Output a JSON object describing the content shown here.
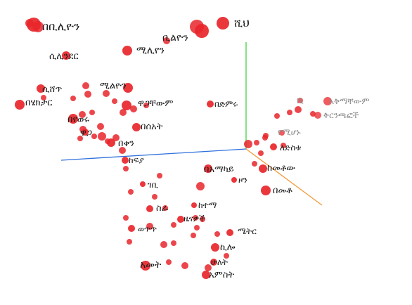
{
  "colors": {
    "point": "#e8262b",
    "label_dark": "#1c1c1c",
    "label_faded": "#8c8c8c",
    "axis_x": "#2e6fdc",
    "axis_y": "#3fd23f",
    "axis_z": "#f29a3a"
  },
  "labels": [
    "በቢሊዮን",
    "ሺህ",
    "ቢልዮን",
    "ሚሊየን",
    "ሲሊንደር",
    "ሚልዮን",
    "ሲሸጥ",
    "በሄክታር",
    "ዋጋቸውም",
    "በድምሩ",
    "በየወሩ",
    "ዋጋ",
    "በሰአት",
    "በቀን",
    "ሺ",
    "አቅማቸውም",
    "ቅርንጫፎች",
    "የሚሆኑ",
    "ለድስቱ",
    "ከፍያ",
    "በአማካይ",
    "ከመቶው",
    "ዞን",
    "በመቶ",
    "ገቢ",
    "ከተማ",
    "ስራ",
    "ዜናዎች",
    "ወጥጥ",
    "ሜትር",
    "ኪሎ",
    "አመት",
    "ሁለት",
    "አምስት"
  ]
}
